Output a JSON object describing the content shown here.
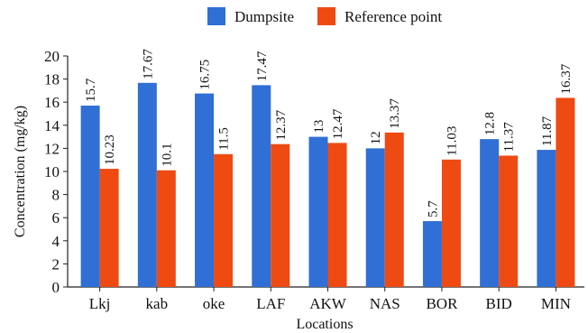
{
  "chart_data": {
    "type": "bar",
    "categories": [
      "Lkj",
      "kab",
      "oke",
      "LAF",
      "AKW",
      "NAS",
      "BOR",
      "BID",
      "MIN"
    ],
    "series": [
      {
        "name": "Dumpsite",
        "values": [
          15.7,
          17.67,
          16.75,
          17.47,
          13,
          12,
          5.7,
          12.8,
          11.87
        ],
        "labels": [
          "15.7",
          "17.67",
          "16.75",
          "17.47",
          "13",
          "12",
          "5.7",
          "12.8",
          "11.87"
        ],
        "color": "#2f6fd6"
      },
      {
        "name": "Reference point",
        "values": [
          10.23,
          10.1,
          11.5,
          12.37,
          12.47,
          13.37,
          11.03,
          11.37,
          16.37
        ],
        "labels": [
          "10.23",
          "10.1",
          "11.5",
          "12.37",
          "12.47",
          "13.37",
          "11.03",
          "11.37",
          "16.37"
        ],
        "color": "#ee4a12"
      }
    ],
    "xlabel": "Locations",
    "ylabel": "Concentration (mg/kg)",
    "ylim": [
      0,
      20
    ],
    "yticks": [
      "0",
      "2",
      "4",
      "6",
      "8",
      "10",
      "12",
      "14",
      "16",
      "18",
      "20"
    ],
    "grid": false,
    "legend_position": "top-center"
  }
}
